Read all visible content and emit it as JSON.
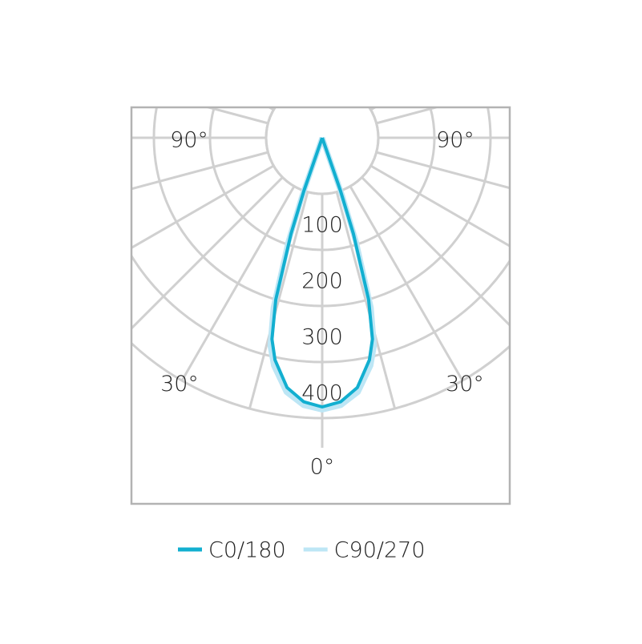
{
  "chart_data": {
    "type": "polar",
    "theta": [
      -20,
      -19,
      -18,
      -16,
      -14,
      -12,
      -8,
      -4,
      0,
      4,
      8,
      12,
      14,
      16,
      18,
      19,
      20
    ],
    "series": [
      {
        "name": "C0/180",
        "color": "#12afd0",
        "values": [
          0,
          100,
          180,
          300,
          370,
          405,
          450,
          472,
          480,
          472,
          450,
          405,
          370,
          300,
          180,
          100,
          0
        ]
      },
      {
        "name": "C90/270",
        "color": "#bde6f5",
        "values": [
          0,
          110,
          195,
          315,
          382,
          415,
          458,
          478,
          485,
          478,
          458,
          415,
          382,
          315,
          195,
          110,
          0
        ]
      }
    ],
    "rlim": [
      0,
      500
    ],
    "rticks": [
      100,
      200,
      300,
      400
    ],
    "thetaticks": [
      {
        "value": -90,
        "label": "90°"
      },
      {
        "value": 90,
        "label": "90°"
      },
      {
        "value": -30,
        "label": "30°"
      },
      {
        "value": 30,
        "label": "30°"
      },
      {
        "value": 0,
        "label": "0°"
      }
    ],
    "theta_grid_step": 15,
    "grid": true
  }
}
